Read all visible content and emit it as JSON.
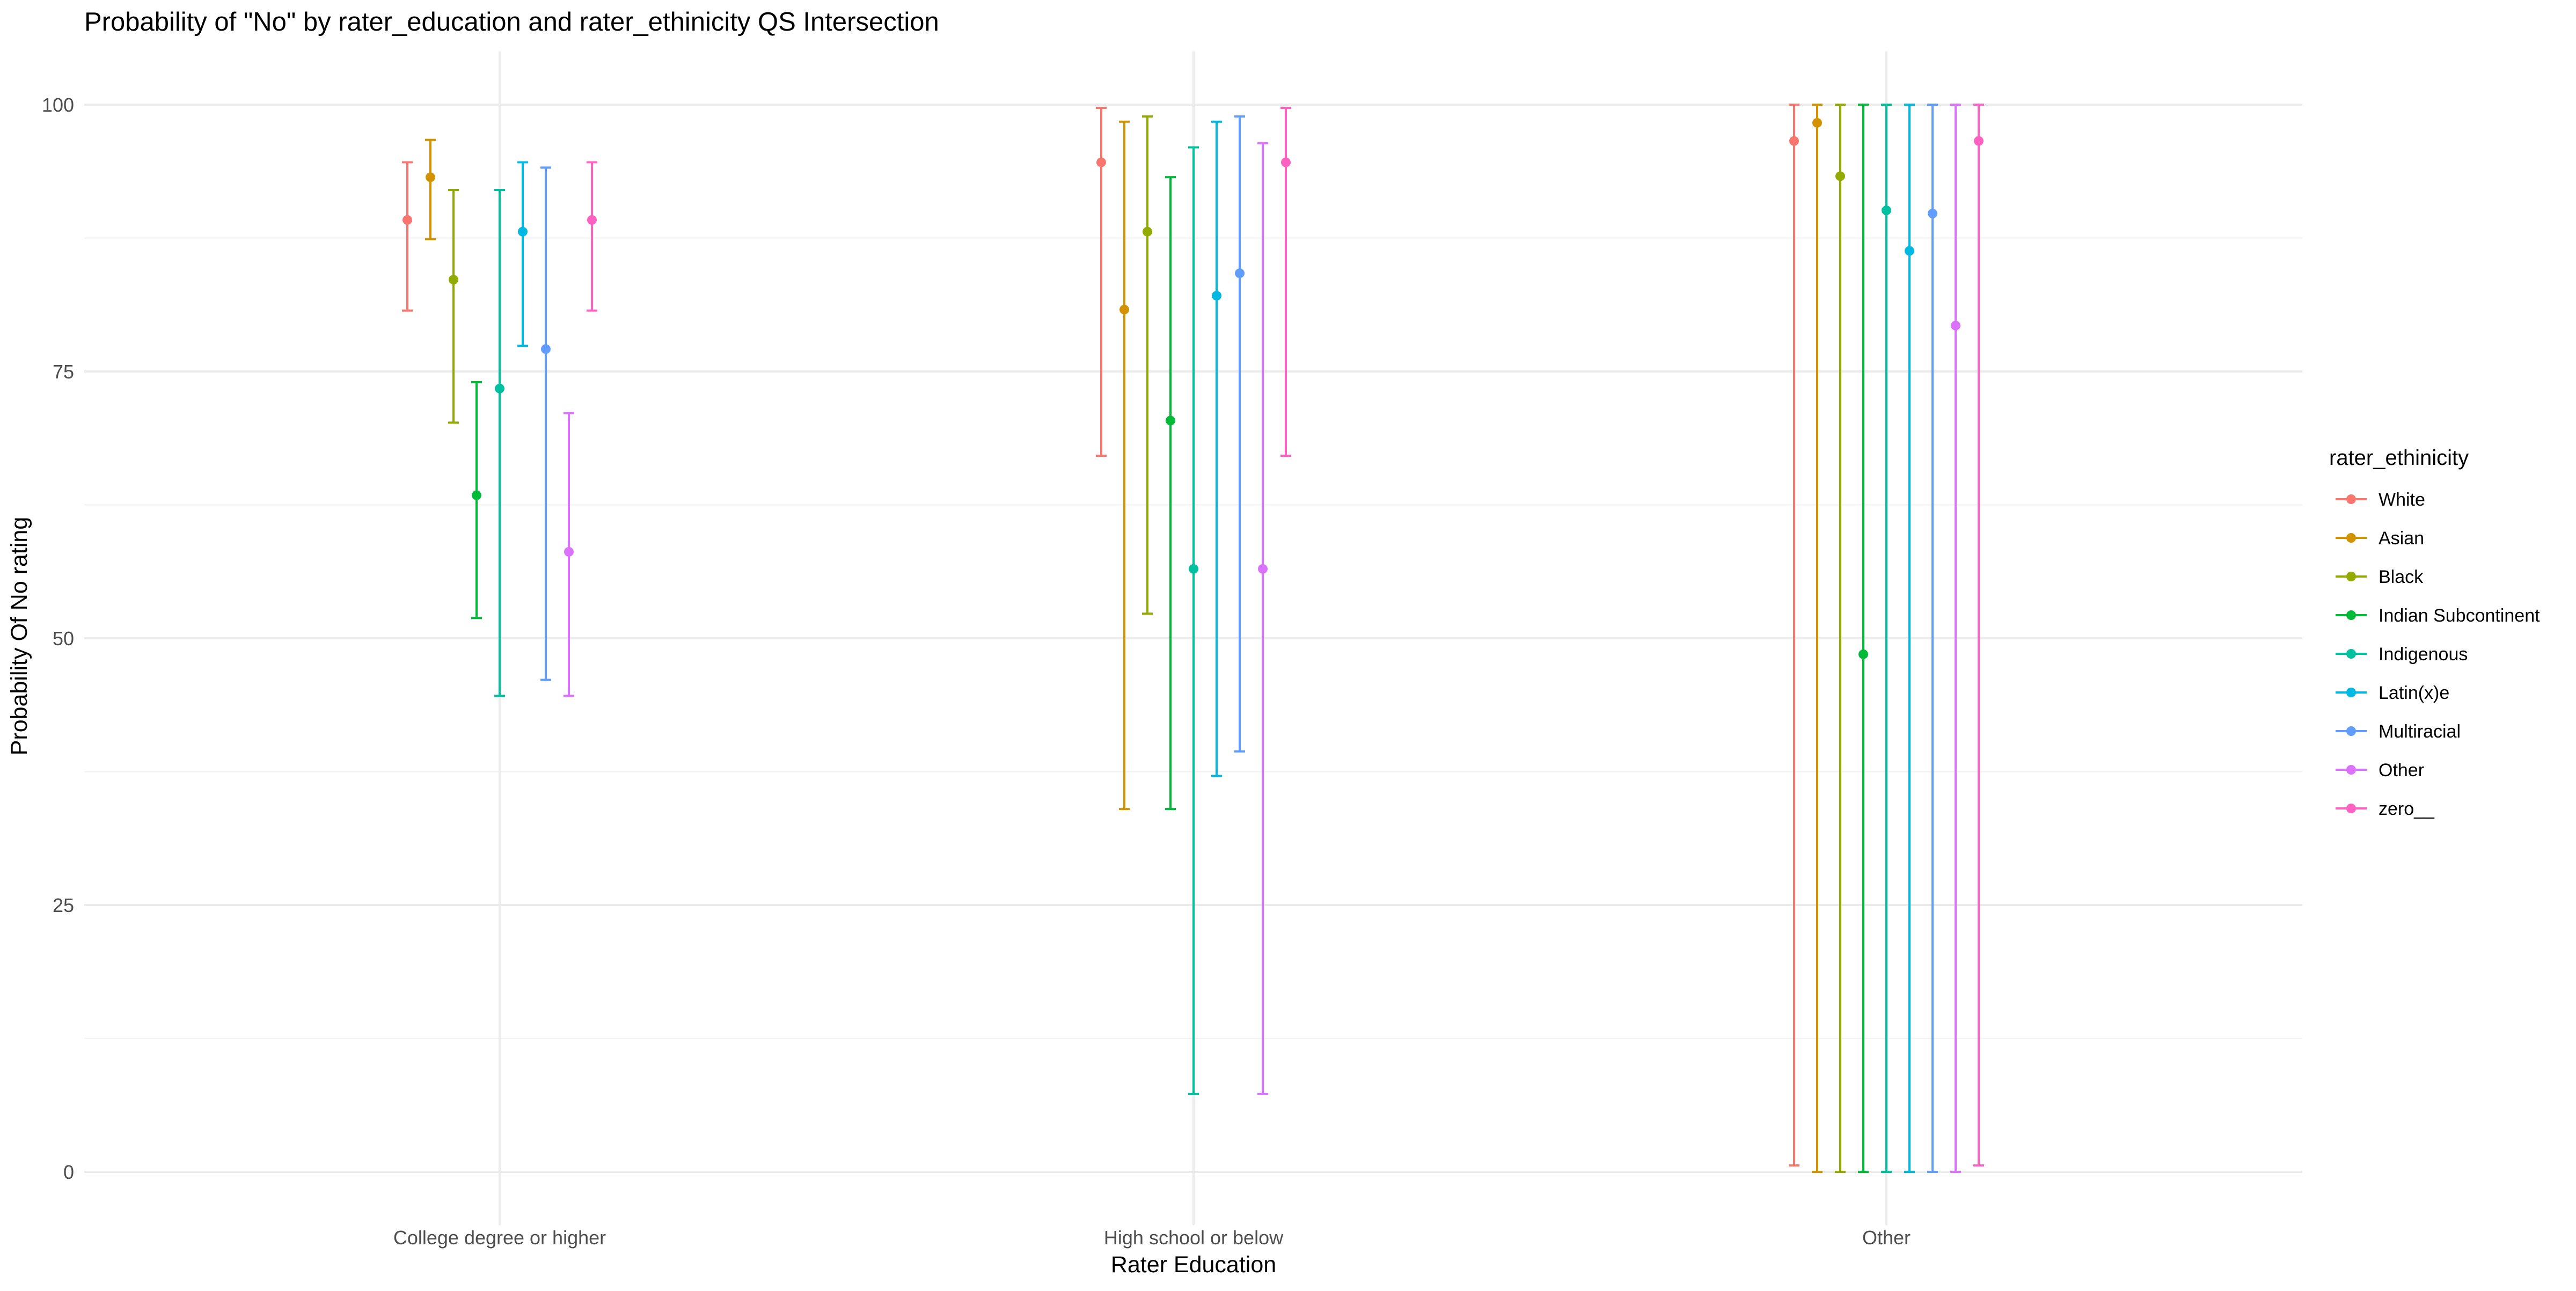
{
  "chart_data": {
    "type": "errorbar",
    "title": "Probability of \"No\" by rater_education and  rater_ethinicity  QS Intersection",
    "xlabel": "Rater Education",
    "ylabel": "Probability Of No rating",
    "categories": [
      "College degree or higher",
      "High school or below",
      "Other"
    ],
    "ylim": [
      -5,
      105
    ],
    "yticks": [
      0,
      25,
      50,
      75,
      100
    ],
    "grid": true,
    "legend": {
      "title": "rater_ethinicity",
      "position": "right"
    },
    "series": [
      {
        "name": "White",
        "color": "#F8766D",
        "points": [
          {
            "y": 89.2,
            "lo": 80.7,
            "hi": 94.6
          },
          {
            "y": 94.6,
            "lo": 67.1,
            "hi": 99.7
          },
          {
            "y": 96.6,
            "lo": 0.6,
            "hi": 100
          }
        ]
      },
      {
        "name": "Asian",
        "color": "#D39200",
        "points": [
          {
            "y": 93.2,
            "lo": 87.4,
            "hi": 96.7
          },
          {
            "y": 80.8,
            "lo": 34.0,
            "hi": 98.4
          },
          {
            "y": 98.3,
            "lo": 0.0,
            "hi": 100
          }
        ]
      },
      {
        "name": "Black",
        "color": "#93AA00",
        "points": [
          {
            "y": 83.6,
            "lo": 70.2,
            "hi": 92.0
          },
          {
            "y": 88.1,
            "lo": 52.3,
            "hi": 98.9
          },
          {
            "y": 93.3,
            "lo": 0.0,
            "hi": 100
          }
        ]
      },
      {
        "name": "Indian Subcontinent",
        "color": "#00BA38",
        "points": [
          {
            "y": 63.4,
            "lo": 51.9,
            "hi": 74.0
          },
          {
            "y": 70.4,
            "lo": 34.0,
            "hi": 93.2
          },
          {
            "y": 48.5,
            "lo": 0.0,
            "hi": 100
          }
        ]
      },
      {
        "name": "Indigenous",
        "color": "#00C19F",
        "points": [
          {
            "y": 73.4,
            "lo": 44.6,
            "hi": 92.0
          },
          {
            "y": 56.5,
            "lo": 7.3,
            "hi": 96.0
          },
          {
            "y": 90.1,
            "lo": 0.0,
            "hi": 100
          }
        ]
      },
      {
        "name": "Latin(x)e",
        "color": "#00B9E3",
        "points": [
          {
            "y": 88.1,
            "lo": 77.4,
            "hi": 94.6
          },
          {
            "y": 82.1,
            "lo": 37.1,
            "hi": 98.4
          },
          {
            "y": 86.3,
            "lo": 0.0,
            "hi": 100
          }
        ]
      },
      {
        "name": "Multiracial",
        "color": "#619CFF",
        "points": [
          {
            "y": 77.1,
            "lo": 46.1,
            "hi": 94.1
          },
          {
            "y": 84.2,
            "lo": 39.4,
            "hi": 98.9
          },
          {
            "y": 89.8,
            "lo": 0.0,
            "hi": 100
          }
        ]
      },
      {
        "name": "Other",
        "color": "#DB72FB",
        "points": [
          {
            "y": 58.1,
            "lo": 44.6,
            "hi": 71.1
          },
          {
            "y": 56.5,
            "lo": 7.3,
            "hi": 96.4
          },
          {
            "y": 79.3,
            "lo": 0.0,
            "hi": 100
          }
        ]
      },
      {
        "name": "zero__",
        "color": "#FF61C3",
        "points": [
          {
            "y": 89.2,
            "lo": 80.7,
            "hi": 94.6
          },
          {
            "y": 94.6,
            "lo": 67.1,
            "hi": 99.7
          },
          {
            "y": 96.6,
            "lo": 0.6,
            "hi": 100
          }
        ]
      }
    ]
  }
}
